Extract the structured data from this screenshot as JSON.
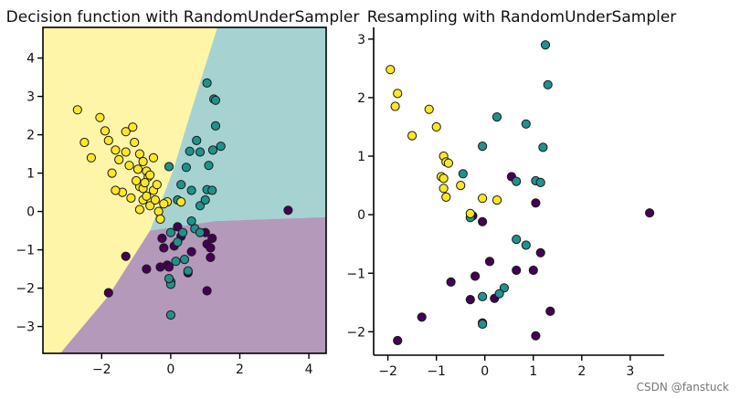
{
  "chart_data": [
    {
      "type": "scatter",
      "title": "Decision function with RandomUnderSampler",
      "xlabel": "",
      "ylabel": "",
      "xlim": [
        -3.7,
        4.5
      ],
      "ylim": [
        -3.7,
        4.8
      ],
      "xticks": [
        -2,
        0,
        2,
        4
      ],
      "yticks": [
        -3,
        -2,
        -1,
        0,
        1,
        2,
        3,
        4
      ],
      "xtick_labels": [
        "−2",
        "0",
        "2",
        "4"
      ],
      "ytick_labels": [
        "−3",
        "−2",
        "−1",
        "0",
        "1",
        "2",
        "3",
        "4"
      ],
      "class_colors": [
        "#440154",
        "#21918c",
        "#fde725"
      ],
      "regions": [
        {
          "class": 2,
          "polygon": [
            [
              -3.7,
              4.8
            ],
            [
              1.35,
              4.8
            ],
            [
              0.55,
              2.5
            ],
            [
              0.08,
              1.1
            ],
            [
              -0.6,
              -0.5
            ],
            [
              -1.8,
              -2.2
            ],
            [
              -3.2,
              -3.7
            ],
            [
              -3.7,
              -3.7
            ]
          ]
        },
        {
          "class": 1,
          "polygon": [
            [
              1.35,
              4.8
            ],
            [
              4.5,
              4.8
            ],
            [
              4.5,
              -0.15
            ],
            [
              1.3,
              -0.25
            ],
            [
              -0.6,
              -0.5
            ],
            [
              0.08,
              1.1
            ],
            [
              0.55,
              2.5
            ]
          ]
        },
        {
          "class": 0,
          "polygon": [
            [
              -3.2,
              -3.7
            ],
            [
              -1.8,
              -2.2
            ],
            [
              -0.6,
              -0.5
            ],
            [
              1.3,
              -0.25
            ],
            [
              4.5,
              -0.15
            ],
            [
              4.5,
              -3.7
            ]
          ]
        }
      ],
      "series": [
        {
          "name": "class 0",
          "class": 0,
          "points": [
            [
              3.4,
              0.03
            ],
            [
              -1.8,
              -2.12
            ],
            [
              -1.3,
              -1.17
            ],
            [
              -0.7,
              -1.5
            ],
            [
              -0.3,
              -1.45
            ],
            [
              -0.25,
              -0.7
            ],
            [
              -0.1,
              -1.4
            ],
            [
              0.1,
              -0.9
            ],
            [
              0.5,
              -1.6
            ],
            [
              0.6,
              -1.05
            ],
            [
              1.0,
              -0.55
            ],
            [
              1.05,
              -0.85
            ],
            [
              1.15,
              -0.95
            ],
            [
              1.05,
              -2.07
            ],
            [
              1.2,
              -0.7
            ],
            [
              1.15,
              -1.2
            ],
            [
              -0.05,
              -1.45
            ],
            [
              0.2,
              -0.4
            ],
            [
              0.3,
              -0.65
            ],
            [
              -0.2,
              -0.95
            ]
          ]
        },
        {
          "name": "class 1",
          "class": 1,
          "points": [
            [
              1.25,
              2.93
            ],
            [
              1.3,
              2.23
            ],
            [
              1.22,
              1.6
            ],
            [
              0.85,
              1.55
            ],
            [
              1.1,
              1.2
            ],
            [
              0.55,
              1.57
            ],
            [
              -0.05,
              1.17
            ],
            [
              0.3,
              0.7
            ],
            [
              0.6,
              0.55
            ],
            [
              1.05,
              0.57
            ],
            [
              1.2,
              0.55
            ],
            [
              0.7,
              -0.45
            ],
            [
              0.2,
              -0.8
            ],
            [
              0.4,
              -1.25
            ],
            [
              0.5,
              -1.55
            ],
            [
              0.0,
              -1.83
            ],
            [
              1.05,
              3.35
            ],
            [
              0.75,
              1.85
            ],
            [
              0.45,
              1.15
            ],
            [
              0.2,
              0.3
            ],
            [
              0.85,
              -0.55
            ],
            [
              0.35,
              -0.55
            ],
            [
              0.0,
              -0.55
            ],
            [
              0.0,
              -1.9
            ],
            [
              0.0,
              -2.7
            ],
            [
              1.3,
              2.9
            ],
            [
              1.45,
              1.7
            ],
            [
              0.85,
              0.15
            ],
            [
              1.0,
              0.3
            ],
            [
              0.6,
              -0.25
            ],
            [
              -0.05,
              -1.75
            ],
            [
              0.15,
              -1.3
            ]
          ]
        },
        {
          "name": "class 2",
          "class": 2,
          "points": [
            [
              -1.3,
              2.08
            ],
            [
              -1.8,
              1.85
            ],
            [
              -2.05,
              2.45
            ],
            [
              -1.5,
              1.35
            ],
            [
              -1.05,
              1.8
            ],
            [
              -0.9,
              1.5
            ],
            [
              -0.9,
              0.65
            ],
            [
              -0.8,
              0.6
            ],
            [
              -0.8,
              0.3
            ],
            [
              -0.7,
              1.05
            ],
            [
              -0.65,
              0.9
            ],
            [
              -0.5,
              0.55
            ],
            [
              -0.35,
              0.0
            ],
            [
              -0.1,
              0.25
            ],
            [
              0.3,
              0.25
            ],
            [
              -0.6,
              0.95
            ],
            [
              -2.7,
              2.65
            ],
            [
              -2.5,
              1.8
            ],
            [
              -1.6,
              1.6
            ],
            [
              -1.2,
              1.2
            ],
            [
              -1.0,
              0.8
            ],
            [
              -0.7,
              0.4
            ],
            [
              -0.4,
              0.7
            ],
            [
              -0.2,
              0.2
            ],
            [
              -0.8,
              1.3
            ],
            [
              -1.4,
              0.5
            ],
            [
              -0.6,
              0.15
            ],
            [
              -0.3,
              -0.2
            ],
            [
              -1.1,
              2.2
            ],
            [
              -1.7,
              1.0
            ],
            [
              -2.3,
              1.4
            ],
            [
              -1.9,
              2.1
            ],
            [
              -0.5,
              1.4
            ],
            [
              -1.15,
              0.35
            ],
            [
              -0.9,
              0.05
            ],
            [
              -1.6,
              0.55
            ],
            [
              -0.45,
              0.3
            ],
            [
              -1.3,
              1.55
            ],
            [
              -0.95,
              1.1
            ],
            [
              -0.75,
              0.75
            ]
          ]
        }
      ]
    },
    {
      "type": "scatter",
      "title": "Resampling with RandomUnderSampler",
      "xlabel": "",
      "ylabel": "",
      "xlim": [
        -2.2,
        3.7
      ],
      "ylim": [
        -2.4,
        3.2
      ],
      "xticks": [
        -2,
        -1,
        0,
        1,
        2,
        3
      ],
      "yticks": [
        -2,
        -1,
        0,
        1,
        2,
        3
      ],
      "xtick_labels": [
        "−2",
        "−1",
        "0",
        "1",
        "2",
        "3"
      ],
      "ytick_labels": [
        "−2",
        "−1",
        "0",
        "1",
        "2",
        "3"
      ],
      "class_colors": [
        "#440154",
        "#21918c",
        "#fde725"
      ],
      "series": [
        {
          "name": "class 0",
          "class": 0,
          "points": [
            [
              3.4,
              0.03
            ],
            [
              -1.8,
              -2.15
            ],
            [
              -1.3,
              -1.75
            ],
            [
              -0.7,
              -1.15
            ],
            [
              -0.3,
              -1.45
            ],
            [
              -0.2,
              -1.05
            ],
            [
              -0.25,
              -0.02
            ],
            [
              -0.05,
              -0.12
            ],
            [
              0.1,
              -0.8
            ],
            [
              0.2,
              -1.43
            ],
            [
              0.55,
              0.65
            ],
            [
              0.65,
              -0.95
            ],
            [
              1.0,
              -0.95
            ],
            [
              1.05,
              0.2
            ],
            [
              1.15,
              -0.65
            ],
            [
              1.35,
              -1.65
            ],
            [
              1.05,
              -2.07
            ],
            [
              -0.05,
              -1.85
            ]
          ]
        },
        {
          "name": "class 1",
          "class": 1,
          "points": [
            [
              1.25,
              2.9
            ],
            [
              1.3,
              2.22
            ],
            [
              0.25,
              1.67
            ],
            [
              0.85,
              1.55
            ],
            [
              -0.05,
              1.17
            ],
            [
              1.2,
              1.15
            ],
            [
              -0.45,
              0.7
            ],
            [
              1.05,
              0.58
            ],
            [
              1.15,
              0.55
            ],
            [
              0.65,
              0.57
            ],
            [
              -0.3,
              -0.05
            ],
            [
              0.65,
              -0.42
            ],
            [
              0.85,
              -0.52
            ],
            [
              0.4,
              -1.25
            ],
            [
              0.3,
              -1.35
            ],
            [
              -0.05,
              -1.4
            ],
            [
              -0.05,
              -1.87
            ]
          ]
        },
        {
          "name": "class 2",
          "class": 2,
          "points": [
            [
              -1.95,
              2.48
            ],
            [
              -1.85,
              1.85
            ],
            [
              -1.8,
              2.07
            ],
            [
              -1.15,
              1.8
            ],
            [
              -1.0,
              1.5
            ],
            [
              -1.5,
              1.35
            ],
            [
              -0.85,
              1.0
            ],
            [
              -0.8,
              0.9
            ],
            [
              -0.75,
              0.88
            ],
            [
              -0.9,
              0.65
            ],
            [
              -0.85,
              0.62
            ],
            [
              -0.85,
              0.45
            ],
            [
              -0.8,
              0.3
            ],
            [
              -0.5,
              0.5
            ],
            [
              -0.05,
              0.28
            ],
            [
              0.25,
              0.25
            ],
            [
              -0.3,
              0.02
            ]
          ]
        }
      ]
    }
  ],
  "watermark": "CSDN @fanstuck"
}
